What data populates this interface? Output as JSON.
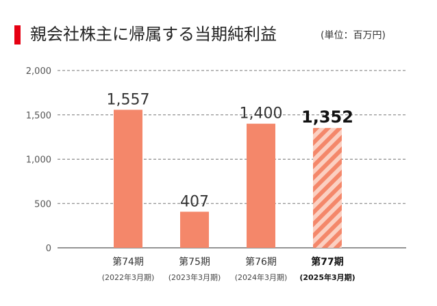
{
  "title": "親会社株主に帰属する当期純利益",
  "unit": "(単位：百万円)",
  "colors": {
    "accent": "#e60012",
    "bar": "#f4876a",
    "hatch_light": "#fbd0c2"
  },
  "chart_data": {
    "type": "bar",
    "categories": [
      "第74期",
      "第75期",
      "第76期",
      "第77期"
    ],
    "periods": [
      "(2022年3月期)",
      "(2023年3月期)",
      "(2024年3月期)",
      "(2025年3月期)"
    ],
    "values": [
      1557,
      407,
      1400,
      1352
    ],
    "value_labels": [
      "1,557",
      "407",
      "1,400",
      "1,352"
    ],
    "ylim": [
      0,
      2000
    ],
    "yticks": [
      0,
      500,
      1000,
      1500,
      2000
    ],
    "ytick_labels": [
      "0",
      "500",
      "1,000",
      "1,500",
      "2,000"
    ],
    "highlight_index": 3,
    "grid": true
  }
}
